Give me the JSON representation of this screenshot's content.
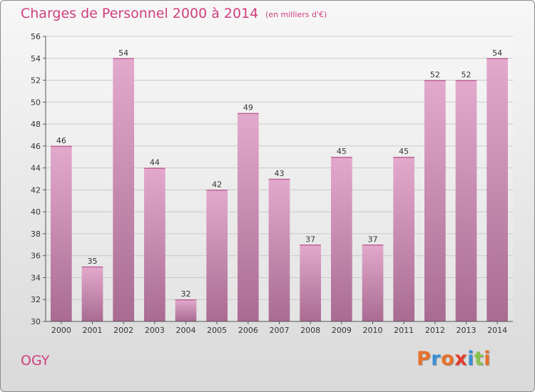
{
  "header": {
    "title": "Charges de Personnel 2000 à 2014",
    "subtitle": "(en milliers d'€)"
  },
  "footer": {
    "town": "OGY",
    "logo_text": "Proxiti",
    "logo_colors": [
      "#e8712a",
      "#3a8fd4",
      "#e8712a",
      "#e53b2c",
      "#3a8fd4",
      "#8bc34a",
      "#e8712a"
    ]
  },
  "chart_data": {
    "type": "bar",
    "title": "Charges de Personnel 2000 à 2014",
    "subtitle": "(en milliers d'€)",
    "xlabel": "",
    "ylabel": "",
    "categories": [
      "2000",
      "2001",
      "2002",
      "2003",
      "2004",
      "2005",
      "2006",
      "2007",
      "2008",
      "2009",
      "2010",
      "2011",
      "2012",
      "2013",
      "2014"
    ],
    "values": [
      46,
      35,
      54,
      44,
      32,
      42,
      49,
      43,
      37,
      45,
      37,
      45,
      52,
      52,
      54
    ],
    "ylim": [
      30,
      56
    ],
    "yticks": [
      30,
      32,
      34,
      36,
      38,
      40,
      42,
      44,
      46,
      48,
      50,
      52,
      54,
      56
    ],
    "grid": true,
    "bar_color_top": "#e3a9cc",
    "bar_color_bottom": "#a96b92",
    "show_value_labels": true
  }
}
